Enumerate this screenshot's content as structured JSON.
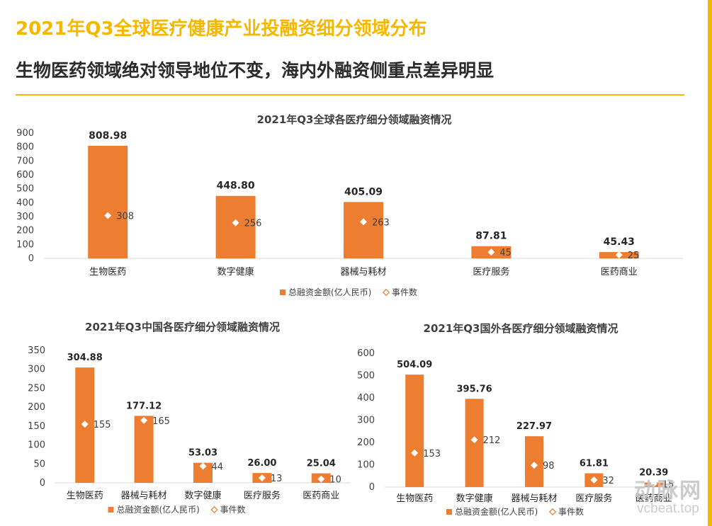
{
  "header": {
    "title": "2021年Q3全球医疗健康产业投融资细分领域分布",
    "subtitle": "生物医药领域绝对领导地位不变，海内外融资侧重点差异明显"
  },
  "colors": {
    "accent": "#f5b800",
    "bar": "#ed7d31",
    "marker": "#ffffff",
    "grid": "#d9d9d9"
  },
  "watermark": {
    "logo": "动脉网",
    "url": "vcbeat.top"
  },
  "chart_data": [
    {
      "id": "global",
      "type": "bar",
      "title": "2021年Q3全球各医疗细分领域融资情况",
      "categories": [
        "生物医药",
        "数字健康",
        "器械与耗材",
        "医疗服务",
        "医药商业"
      ],
      "series": [
        {
          "name": "总融资金额(亿人民币)",
          "kind": "bar",
          "values": [
            808.98,
            448.8,
            405.09,
            87.81,
            45.43
          ],
          "labels": [
            "808.98",
            "448.80",
            "405.09",
            "87.81",
            "45.43"
          ]
        },
        {
          "name": "事件数",
          "kind": "marker",
          "values": [
            308,
            256,
            263,
            45,
            25
          ],
          "labels": [
            "308",
            "256",
            "263",
            "45",
            "25"
          ]
        }
      ],
      "yticks": [
        "0",
        "100",
        "200",
        "300",
        "400",
        "500",
        "600",
        "700",
        "800",
        "900"
      ],
      "ylim": [
        0,
        900
      ],
      "legend": "bottom-center"
    },
    {
      "id": "china",
      "type": "bar",
      "title": "2021年Q3中国各医疗细分领域融资情况",
      "categories": [
        "生物医药",
        "器械与耗材",
        "数字健康",
        "医疗服务",
        "医药商业"
      ],
      "series": [
        {
          "name": "总融资金额(亿人民币)",
          "kind": "bar",
          "values": [
            304.88,
            177.12,
            53.03,
            26.0,
            25.04
          ],
          "labels": [
            "304.88",
            "177.12",
            "53.03",
            "26.00",
            "25.04"
          ]
        },
        {
          "name": "事件数",
          "kind": "marker",
          "values": [
            155,
            165,
            44,
            13,
            10
          ],
          "labels": [
            "155",
            "165",
            "44",
            "13",
            "10"
          ]
        }
      ],
      "yticks": [
        "0",
        "50",
        "100",
        "150",
        "200",
        "250",
        "300",
        "350"
      ],
      "ylim": [
        0,
        350
      ],
      "legend": "bottom-center"
    },
    {
      "id": "overseas",
      "type": "bar",
      "title": "2021年Q3国外各医疗细分领域融资情况",
      "categories": [
        "生物医药",
        "数字健康",
        "器械与耗材",
        "医疗服务",
        "医药商业"
      ],
      "series": [
        {
          "name": "总融资金额(亿人民币)",
          "kind": "bar",
          "values": [
            504.09,
            395.76,
            227.97,
            61.81,
            20.39
          ],
          "labels": [
            "504.09",
            "395.76",
            "227.97",
            "61.81",
            "20.39"
          ]
        },
        {
          "name": "事件数",
          "kind": "marker",
          "values": [
            153,
            212,
            98,
            32,
            15
          ],
          "labels": [
            "153",
            "212",
            "98",
            "32",
            "15"
          ]
        }
      ],
      "yticks": [
        "0",
        "100",
        "200",
        "300",
        "400",
        "500",
        "600"
      ],
      "ylim": [
        0,
        600
      ],
      "legend": "bottom-center"
    }
  ]
}
